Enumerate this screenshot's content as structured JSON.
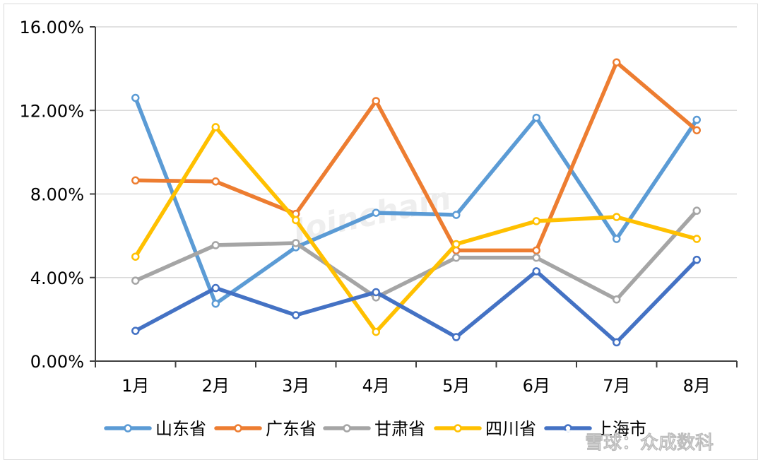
{
  "chart_data": {
    "type": "line",
    "categories": [
      "1月",
      "2月",
      "3月",
      "4月",
      "5月",
      "6月",
      "7月",
      "8月"
    ],
    "ylim": [
      0,
      16
    ],
    "yticks": [
      "0.00%",
      "4.00%",
      "8.00%",
      "12.00%",
      "16.00%"
    ],
    "ytick_values": [
      0,
      4,
      8,
      12,
      16
    ],
    "grid": true,
    "legend_position": "bottom",
    "series": [
      {
        "name": "山东省",
        "color": "#5b9bd5",
        "values": [
          12.6,
          2.75,
          5.45,
          7.1,
          7.0,
          11.65,
          5.85,
          11.55
        ]
      },
      {
        "name": "广东省",
        "color": "#ed7d31",
        "values": [
          8.65,
          8.6,
          7.05,
          12.45,
          5.3,
          5.3,
          14.3,
          11.05
        ]
      },
      {
        "name": "甘肃省",
        "color": "#a5a5a5",
        "values": [
          3.85,
          5.55,
          5.65,
          3.05,
          4.95,
          4.95,
          2.95,
          7.2
        ]
      },
      {
        "name": "四川省",
        "color": "#ffc000",
        "values": [
          5.0,
          11.2,
          6.75,
          1.4,
          5.6,
          6.7,
          6.9,
          5.85
        ]
      },
      {
        "name": "上海市",
        "color": "#4472c4",
        "values": [
          1.45,
          3.5,
          2.2,
          3.3,
          1.15,
          4.3,
          0.9,
          4.85
        ]
      }
    ]
  },
  "watermark": {
    "text": "雪球：众成数科",
    "faint_text": "Joinchain"
  }
}
